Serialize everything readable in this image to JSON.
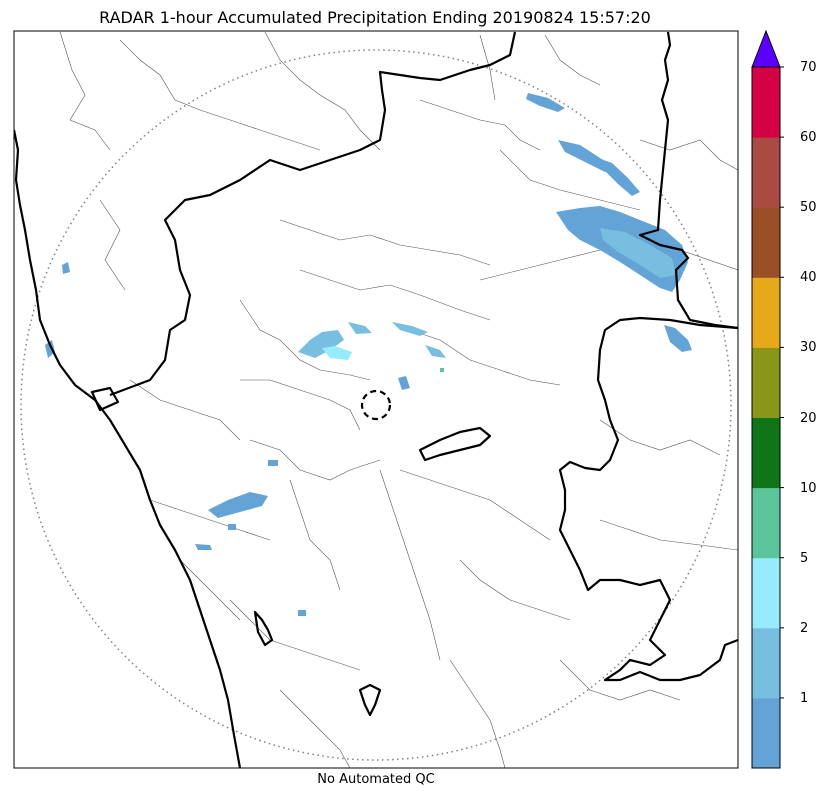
{
  "title": "RADAR 1-hour Accumulated Precipitation Ending 20190824 15:57:20",
  "footer_note": "No Automated QC",
  "colorbar": {
    "bins": [
      {
        "label": "1",
        "color": "#64a3d6"
      },
      {
        "label": "2",
        "color": "#78bee0"
      },
      {
        "label": "5",
        "color": "#96ecfc"
      },
      {
        "label": "10",
        "color": "#5cc49a"
      },
      {
        "label": "20",
        "color": "#0e7617"
      },
      {
        "label": "30",
        "color": "#8a9617"
      },
      {
        "label": "40",
        "color": "#e6a91b"
      },
      {
        "label": "50",
        "color": "#9b4f27"
      },
      {
        "label": "60",
        "color": "#a94a43"
      },
      {
        "label": "70",
        "color": "#d50046"
      }
    ],
    "bottom_label": "",
    "over_color": "#5a00ff"
  },
  "layers": {
    "state_boundaries": "thick black",
    "district_boundaries": "thin gray",
    "radar_range_ring": "dotted gray",
    "radar_location_marker": "dashed black circle"
  }
}
